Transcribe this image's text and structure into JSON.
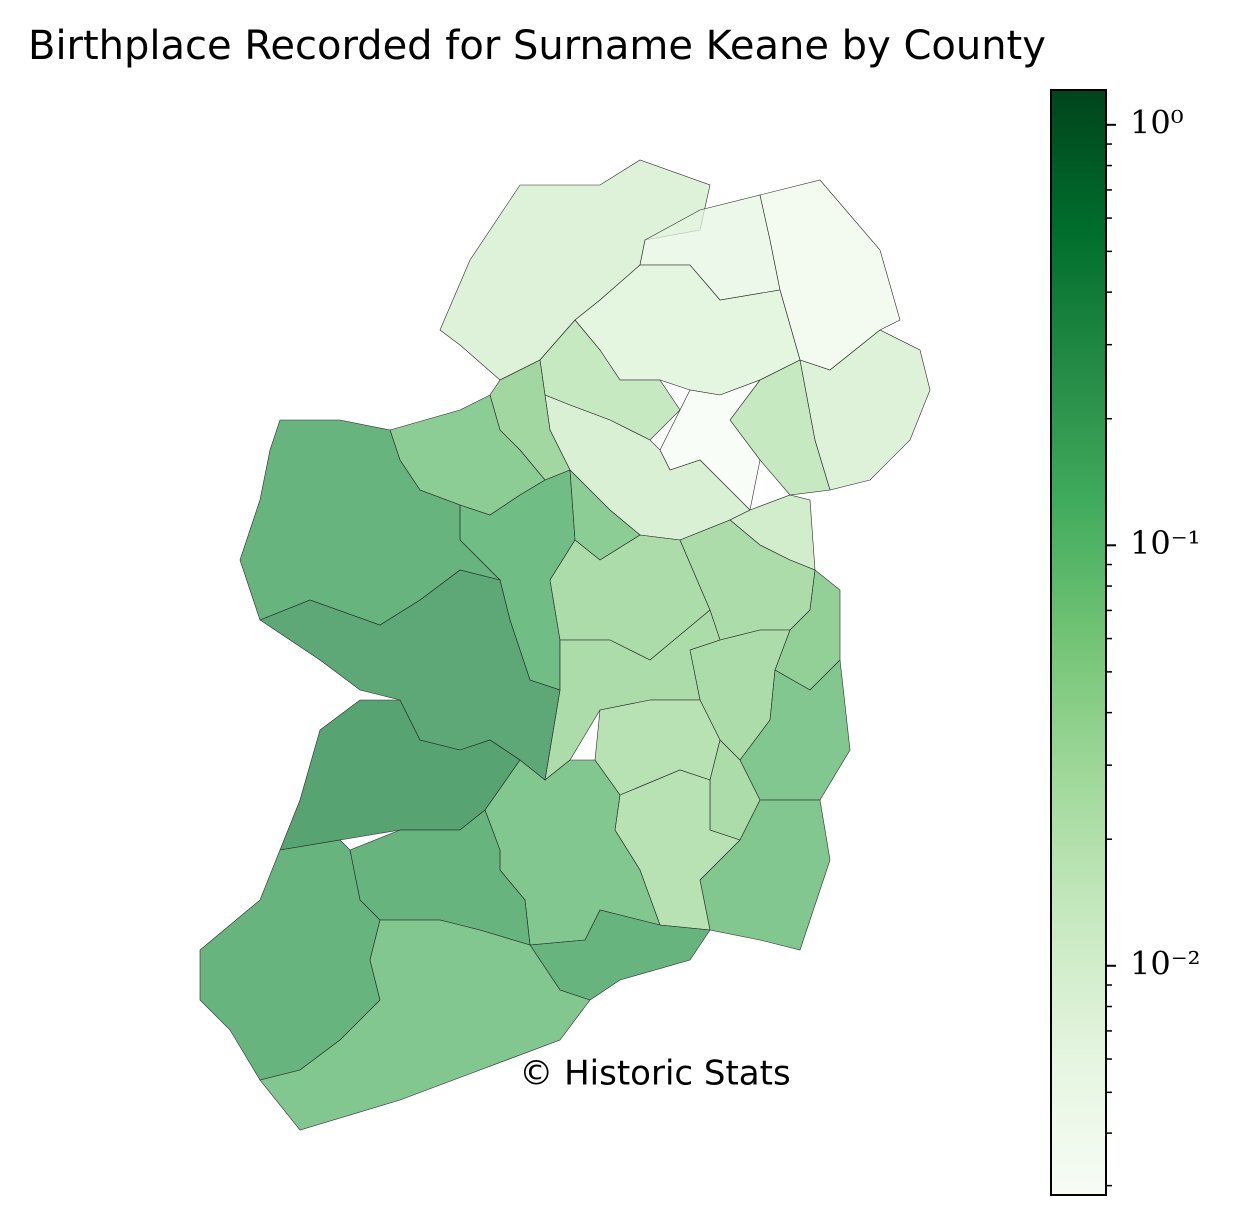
{
  "chart_data": {
    "type": "choropleth",
    "title": "Birthplace Recorded for Surname Keane by County",
    "annotation": "© Historic Stats",
    "values": [
      0.01,
      0.006,
      0.004,
      0.008,
      0.02,
      0.02,
      0.003,
      0.01,
      0.012,
      0.015,
      0.05,
      0.08,
      0.15,
      0.08,
      0.04,
      0.04,
      0.07,
      0.04,
      0.04,
      0.1,
      0.03,
      0.04,
      0.1,
      0.03,
      0.1,
      0.2,
      0.3,
      0.2,
      0.35,
      0.2,
      0.2,
      0.1
    ],
    "colormap": [
      "#f7fcf5",
      "#e5f5e0",
      "#c7e9c0",
      "#a1d99b",
      "#74c476",
      "#41ab5d",
      "#238b45",
      "#006d2c",
      "#00441b"
    ],
    "log_scale": true,
    "ylim": [
      0.00285,
      1.21
    ],
    "yticks": [
      {
        "value": 1,
        "label": "10⁰"
      },
      {
        "value": 0.1,
        "label": "10⁻¹"
      },
      {
        "value": 0.01,
        "label": "10⁻²"
      }
    ],
    "minor_yticks": [
      0.003,
      0.004,
      0.005,
      0.006,
      0.007,
      0.008,
      0.009,
      0.02,
      0.03,
      0.04,
      0.05,
      0.06,
      0.07,
      0.08,
      0.09,
      0.2,
      0.3,
      0.4,
      0.5,
      0.6,
      0.7,
      0.8,
      0.9
    ]
  }
}
